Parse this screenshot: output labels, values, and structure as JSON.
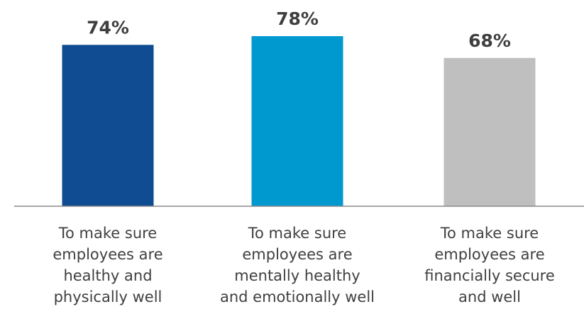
{
  "chart_data": {
    "type": "bar",
    "categories": [
      [
        "To make sure",
        "employees are",
        "healthy and",
        "physically well"
      ],
      [
        "To make sure",
        "employees are",
        "mentally healthy",
        "and emotionally well"
      ],
      [
        "To make sure",
        "employees are",
        "financially secure",
        "and well"
      ]
    ],
    "values": [
      74,
      78,
      68
    ],
    "value_labels": [
      "74%",
      "78%",
      "68%"
    ],
    "colors": [
      "#0f4c92",
      "#0099cf",
      "#bfbfbf"
    ],
    "axis_color": "#8c8c8c",
    "ylim": [
      0,
      100
    ],
    "grid": false,
    "legend": "none",
    "title": "",
    "xlabel": "",
    "ylabel": ""
  }
}
